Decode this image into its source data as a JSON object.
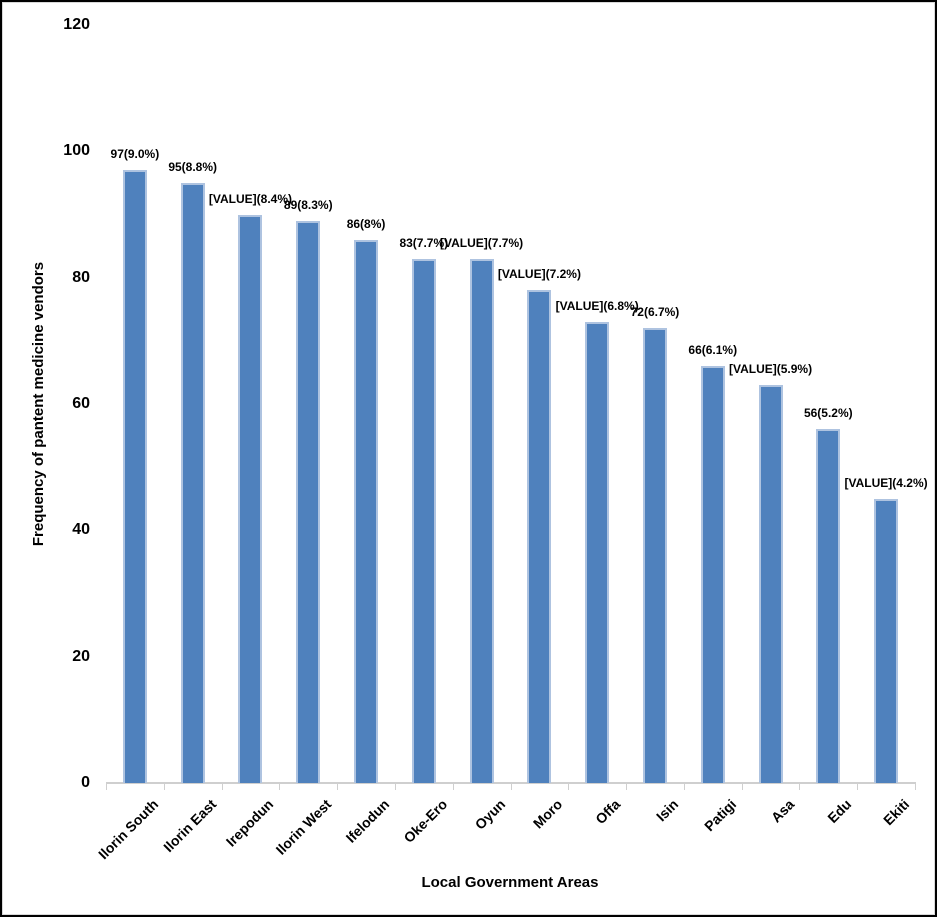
{
  "chart_data": {
    "type": "bar",
    "xlabel": "Local Government Areas",
    "ylabel": "Frequency of pantent medicine vendors",
    "categories": [
      "Ilorin South",
      "Ilorin East",
      "Irepodun",
      "Ilorin West",
      "Ifelodun",
      "Oke-Ero",
      "Oyun",
      "Moro",
      "Offa",
      "Isin",
      "Patigi",
      "Asa",
      "Edu",
      "Ekiti"
    ],
    "values": [
      97,
      95,
      90,
      89,
      86,
      83,
      83,
      78,
      73,
      72,
      66,
      63,
      56,
      45
    ],
    "data_labels": [
      "97(9.0%)",
      "95(8.8%)",
      "[VALUE](8.4%)",
      "89(8.3%)",
      "86(8%)",
      "83(7.7%)",
      "[VALUE](7.7%)",
      "[VALUE](7.2%)",
      "[VALUE](6.8%)",
      "72(6.7%)",
      "66(6.1%)",
      "[VALUE](5.9%)",
      "56(5.2%)",
      "[VALUE](4.2%)"
    ],
    "ylim": [
      0,
      120
    ],
    "yticks": [
      0,
      20,
      40,
      60,
      80,
      100,
      120
    ],
    "grid": "off",
    "legend": "none",
    "colors": {
      "bar_fill": "#4f81bd",
      "bar_border": "#aec3e0",
      "axis_line": "#cfcfcf",
      "text": "#000000",
      "background": "#ffffff",
      "frame_border": "#000000"
    }
  }
}
